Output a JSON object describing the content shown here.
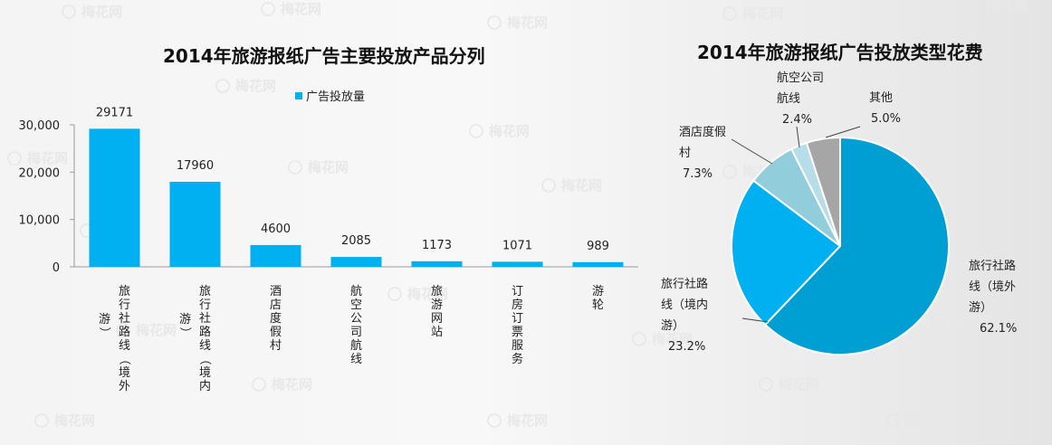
{
  "chart_data": [
    {
      "type": "bar",
      "title": "2014年旅游报纸广告主要投放产品分列",
      "categories": [
        "旅行社路线（境外游）",
        "旅行社路线（境内游）",
        "酒店度假村",
        "航空公司航线",
        "旅游网站",
        "订房订票服务",
        "游轮"
      ],
      "category_label_columns": [
        [
          "旅行社路线（境外",
          "游）"
        ],
        [
          "旅行社路线（境内",
          "游）"
        ],
        [
          "酒店度假村"
        ],
        [
          "航空公司航线"
        ],
        [
          "旅游网站"
        ],
        [
          "订房订票服务"
        ],
        [
          "游轮"
        ]
      ],
      "series": [
        {
          "name": "广告投放量",
          "values": [
            29171,
            17960,
            4600,
            2085,
            1173,
            1071,
            989
          ]
        }
      ],
      "data_labels": [
        "29171",
        "17960",
        "4600",
        "2085",
        "1173",
        "1071",
        "989"
      ],
      "y_ticks": [
        0,
        10000,
        20000,
        30000
      ],
      "y_tick_labels": [
        "0",
        "10,000",
        "20,000",
        "30,000"
      ],
      "ylim": [
        0,
        30000
      ],
      "legend_position": "top-center",
      "grid": false,
      "colors": {
        "bar": "#00b0f0",
        "axis": "#9a9a9a"
      }
    },
    {
      "type": "pie",
      "title": "2014年旅游报纸广告投放类型花费",
      "slices": [
        {
          "label": "旅行社路线（境外游）",
          "label_lines": [
            "旅行社路",
            "线（境外",
            "游）"
          ],
          "value": 62.1,
          "value_label": "62.1%",
          "color": "#009fd3"
        },
        {
          "label": "旅行社路线（境内游）",
          "label_lines": [
            "旅行社路",
            "线（境内",
            "游）"
          ],
          "value": 23.2,
          "value_label": "23.2%",
          "color": "#00b0f0"
        },
        {
          "label": "酒店度假村",
          "label_lines": [
            "酒店度假",
            "村"
          ],
          "value": 7.3,
          "value_label": "7.3%",
          "color": "#92cddc"
        },
        {
          "label": "航空公司航线",
          "label_lines": [
            "航空公司",
            "航线"
          ],
          "value": 2.4,
          "value_label": "2.4%",
          "color": "#b7dee8"
        },
        {
          "label": "其他",
          "label_lines": [
            "其他"
          ],
          "value": 5.0,
          "value_label": "5.0%",
          "color": "#a6a6a6"
        }
      ]
    }
  ],
  "watermark": {
    "text": "梅花网"
  }
}
